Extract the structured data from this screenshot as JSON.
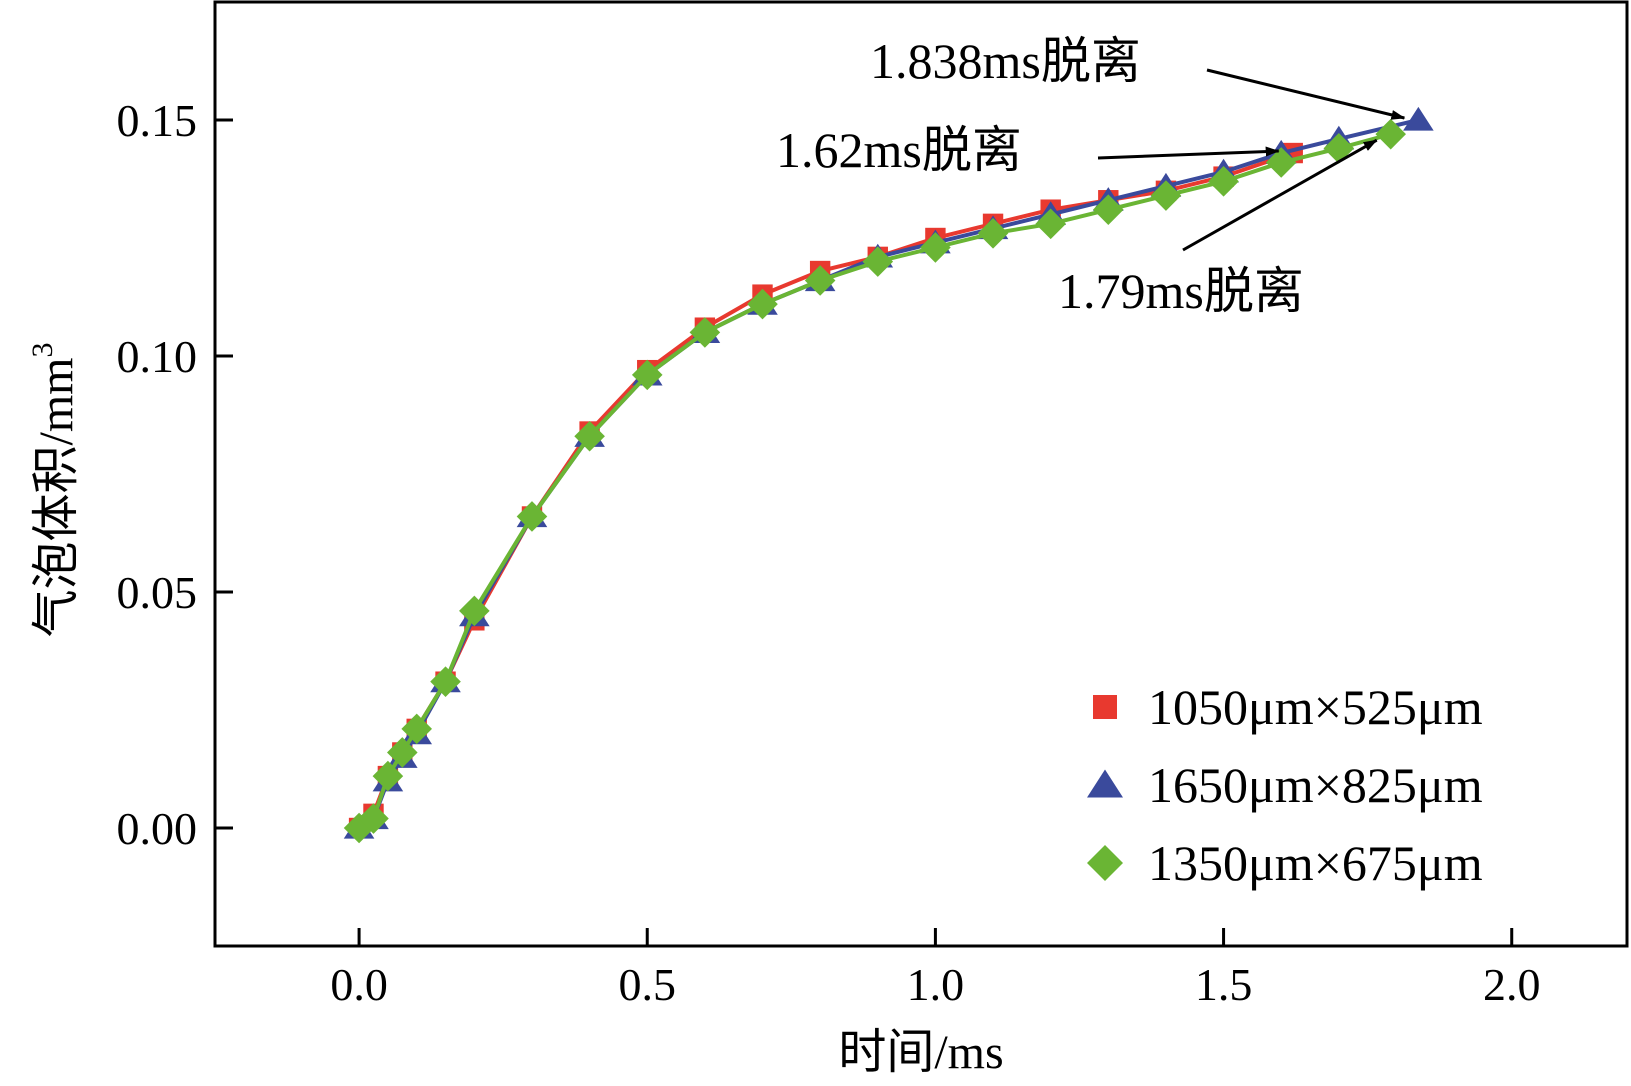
{
  "chart_data": {
    "type": "line",
    "title": "",
    "xlabel": "时间/ms",
    "ylabel": "气泡体积/mm",
    "ylabel_superscript": "3",
    "xlim": [
      -0.25,
      2.2
    ],
    "ylim": [
      -0.025,
      0.175
    ],
    "xticks": [
      0.0,
      0.5,
      1.0,
      1.5,
      2.0
    ],
    "xtick_labels": [
      "0.0",
      "0.5",
      "1.0",
      "1.5",
      "2.0"
    ],
    "yticks": [
      0.0,
      0.05,
      0.1,
      0.15
    ],
    "ytick_labels": [
      "0.00",
      "0.05",
      "0.10",
      "0.15"
    ],
    "grid": false,
    "legend_position": "bottom-right",
    "series": [
      {
        "name": "1050μm×525μm",
        "marker": "square",
        "color": "#e8392f",
        "x": [
          0.0,
          0.025,
          0.05,
          0.075,
          0.1,
          0.15,
          0.2,
          0.3,
          0.4,
          0.5,
          0.6,
          0.7,
          0.8,
          0.9,
          1.0,
          1.1,
          1.2,
          1.3,
          1.4,
          1.5,
          1.62
        ],
        "y": [
          0.0,
          0.003,
          0.011,
          0.016,
          0.021,
          0.031,
          0.044,
          0.066,
          0.084,
          0.097,
          0.106,
          0.113,
          0.118,
          0.121,
          0.125,
          0.128,
          0.131,
          0.133,
          0.135,
          0.138,
          0.143
        ]
      },
      {
        "name": "1650μm×825μm",
        "marker": "triangle",
        "color": "#3a4a9c",
        "x": [
          0.0,
          0.025,
          0.05,
          0.075,
          0.1,
          0.15,
          0.2,
          0.3,
          0.4,
          0.5,
          0.6,
          0.7,
          0.8,
          0.9,
          1.0,
          1.1,
          1.2,
          1.3,
          1.4,
          1.5,
          1.6,
          1.7,
          1.838
        ],
        "y": [
          0.0,
          0.002,
          0.01,
          0.015,
          0.02,
          0.031,
          0.045,
          0.066,
          0.083,
          0.096,
          0.105,
          0.111,
          0.116,
          0.121,
          0.124,
          0.127,
          0.13,
          0.133,
          0.136,
          0.139,
          0.143,
          0.146,
          0.15
        ]
      },
      {
        "name": "1350μm×675μm",
        "marker": "diamond",
        "color": "#6ab534",
        "x": [
          0.0,
          0.025,
          0.05,
          0.075,
          0.1,
          0.15,
          0.2,
          0.3,
          0.4,
          0.5,
          0.6,
          0.7,
          0.8,
          0.9,
          1.0,
          1.1,
          1.2,
          1.3,
          1.4,
          1.5,
          1.6,
          1.7,
          1.79
        ],
        "y": [
          0.0,
          0.002,
          0.011,
          0.016,
          0.021,
          0.031,
          0.046,
          0.066,
          0.083,
          0.096,
          0.105,
          0.111,
          0.116,
          0.12,
          0.123,
          0.126,
          0.128,
          0.131,
          0.134,
          0.137,
          0.141,
          0.144,
          0.147
        ]
      }
    ],
    "annotations": [
      {
        "text": "1.838ms脱离",
        "x": 1.838,
        "y": 0.15
      },
      {
        "text": "1.62ms脱离",
        "x": 1.62,
        "y": 0.143
      },
      {
        "text": "1.79ms脱离",
        "x": 1.79,
        "y": 0.147
      }
    ]
  }
}
